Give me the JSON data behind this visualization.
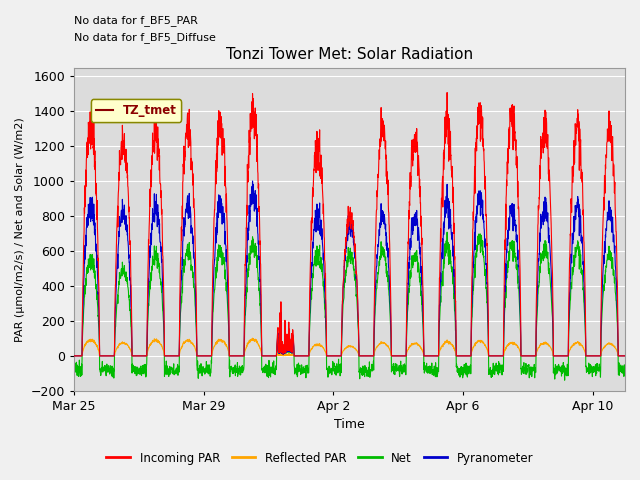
{
  "title": "Tonzi Tower Met: Solar Radiation",
  "xlabel": "Time",
  "ylabel": "PAR (μmol/m2/s) / Net and Solar (W/m2)",
  "ylim": [
    -200,
    1650
  ],
  "yticks": [
    -200,
    0,
    200,
    400,
    600,
    800,
    1000,
    1200,
    1400,
    1600
  ],
  "background_color": "#d8d8d8",
  "plot_bg_color": "#d8d8d8",
  "text_annotations": [
    "No data for f_BF5_PAR",
    "No data for f_BF5_Diffuse"
  ],
  "legend_label": "TZ_tmet",
  "legend_entries": [
    "Incoming PAR",
    "Reflected PAR",
    "Net",
    "Pyranometer"
  ],
  "legend_colors": [
    "#ff0000",
    "#ffa500",
    "#00bb00",
    "#0000cc"
  ],
  "colors": {
    "incoming_par": "#ff0000",
    "reflected_par": "#ffa500",
    "net": "#00bb00",
    "pyranometer": "#0000cc"
  },
  "x_tick_labels": [
    "Mar 25",
    "Mar 29",
    "Apr 2",
    "Apr 6",
    "Apr 10"
  ],
  "x_tick_positions": [
    0,
    4,
    8,
    12,
    16
  ],
  "total_days": 17,
  "net_night": -80,
  "incoming_peaks": [
    1325,
    1230,
    1295,
    1305,
    1325,
    1410,
    370,
    1205,
    800,
    1305,
    1250,
    1320,
    1380,
    1385,
    1300,
    1305,
    1295
  ],
  "pyrano_peaks": [
    860,
    835,
    855,
    860,
    870,
    940,
    300,
    815,
    750,
    800,
    800,
    860,
    900,
    840,
    840,
    845,
    820
  ],
  "net_peaks": [
    550,
    500,
    580,
    600,
    600,
    640,
    250,
    590,
    580,
    600,
    580,
    620,
    665,
    635,
    610,
    610,
    580
  ],
  "reflected_peaks": [
    90,
    75,
    90,
    88,
    90,
    95,
    30,
    65,
    55,
    75,
    72,
    80,
    85,
    75,
    73,
    75,
    70
  ]
}
